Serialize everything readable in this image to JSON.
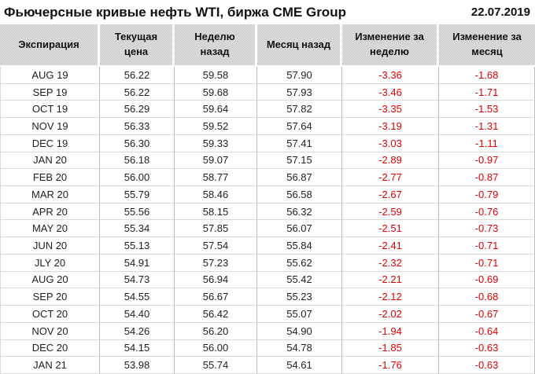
{
  "header": {
    "title": "Фьючерсные кривые нефть WTI, биржа CME Group",
    "date": "22.07.2019"
  },
  "table": {
    "columns": [
      "Экспирация",
      "Текущая цена",
      "Неделю назад",
      "Месяц назад",
      "Изменение за неделю",
      "Изменение за месяц"
    ],
    "rows": [
      [
        "AUG 19",
        "56.22",
        "59.58",
        "57.90",
        "-3.36",
        "-1.68"
      ],
      [
        "SEP 19",
        "56.22",
        "59.68",
        "57.93",
        "-3.46",
        "-1.71"
      ],
      [
        "OCT 19",
        "56.29",
        "59.64",
        "57.82",
        "-3.35",
        "-1.53"
      ],
      [
        "NOV 19",
        "56.33",
        "59.52",
        "57.64",
        "-3.19",
        "-1.31"
      ],
      [
        "DEC 19",
        "56.30",
        "59.33",
        "57.41",
        "-3.03",
        "-1.11"
      ],
      [
        "JAN 20",
        "56.18",
        "59.07",
        "57.15",
        "-2.89",
        "-0.97"
      ],
      [
        "FEB 20",
        "56.00",
        "58.77",
        "56.87",
        "-2.77",
        "-0.87"
      ],
      [
        "MAR 20",
        "55.79",
        "58.46",
        "56.58",
        "-2.67",
        "-0.79"
      ],
      [
        "APR 20",
        "55.56",
        "58.15",
        "56.32",
        "-2.59",
        "-0.76"
      ],
      [
        "MAY 20",
        "55.34",
        "57.85",
        "56.07",
        "-2.51",
        "-0.73"
      ],
      [
        "JUN 20",
        "55.13",
        "57.54",
        "55.84",
        "-2.41",
        "-0.71"
      ],
      [
        "JLY 20",
        "54.91",
        "57.23",
        "55.62",
        "-2.32",
        "-0.71"
      ],
      [
        "AUG 20",
        "54.73",
        "56.94",
        "55.42",
        "-2.21",
        "-0.69"
      ],
      [
        "SEP 20",
        "54.55",
        "56.67",
        "55.23",
        "-2.12",
        "-0.68"
      ],
      [
        "OCT 20",
        "54.40",
        "56.42",
        "55.07",
        "-2.02",
        "-0.67"
      ],
      [
        "NOV 20",
        "54.26",
        "56.20",
        "54.90",
        "-1.94",
        "-0.64"
      ],
      [
        "DEC 20",
        "54.15",
        "56.00",
        "54.78",
        "-1.85",
        "-0.63"
      ],
      [
        "JAN 21",
        "53.98",
        "55.74",
        "54.61",
        "-1.76",
        "-0.63"
      ]
    ]
  },
  "colors": {
    "negative_text": "#e00000",
    "header_background": "#d9d9d9",
    "body_text": "#1f1f1f"
  },
  "chart_data": {
    "type": "table",
    "title": "Фьючерсные кривые нефть WTI, биржа CME Group",
    "subtitle_date": "22.07.2019",
    "columns": [
      "Экспирация",
      "Текущая цена",
      "Неделю назад",
      "Месяц назад",
      "Изменение за неделю",
      "Изменение за месяц"
    ],
    "rows": [
      [
        "AUG 19",
        56.22,
        59.58,
        57.9,
        -3.36,
        -1.68
      ],
      [
        "SEP 19",
        56.22,
        59.68,
        57.93,
        -3.46,
        -1.71
      ],
      [
        "OCT 19",
        56.29,
        59.64,
        57.82,
        -3.35,
        -1.53
      ],
      [
        "NOV 19",
        56.33,
        59.52,
        57.64,
        -3.19,
        -1.31
      ],
      [
        "DEC 19",
        56.3,
        59.33,
        57.41,
        -3.03,
        -1.11
      ],
      [
        "JAN 20",
        56.18,
        59.07,
        57.15,
        -2.89,
        -0.97
      ],
      [
        "FEB 20",
        56.0,
        58.77,
        56.87,
        -2.77,
        -0.87
      ],
      [
        "MAR 20",
        55.79,
        58.46,
        56.58,
        -2.67,
        -0.79
      ],
      [
        "APR 20",
        55.56,
        58.15,
        56.32,
        -2.59,
        -0.76
      ],
      [
        "MAY 20",
        55.34,
        57.85,
        56.07,
        -2.51,
        -0.73
      ],
      [
        "JUN 20",
        55.13,
        57.54,
        55.84,
        -2.41,
        -0.71
      ],
      [
        "JLY 20",
        54.91,
        57.23,
        55.62,
        -2.32,
        -0.71
      ],
      [
        "AUG 20",
        54.73,
        56.94,
        55.42,
        -2.21,
        -0.69
      ],
      [
        "SEP 20",
        54.55,
        56.67,
        55.23,
        -2.12,
        -0.68
      ],
      [
        "OCT 20",
        54.4,
        56.42,
        55.07,
        -2.02,
        -0.67
      ],
      [
        "NOV 20",
        54.26,
        56.2,
        54.9,
        -1.94,
        -0.64
      ],
      [
        "DEC 20",
        54.15,
        56.0,
        54.78,
        -1.85,
        -0.63
      ],
      [
        "JAN 21",
        53.98,
        55.74,
        54.61,
        -1.76,
        -0.63
      ]
    ]
  }
}
